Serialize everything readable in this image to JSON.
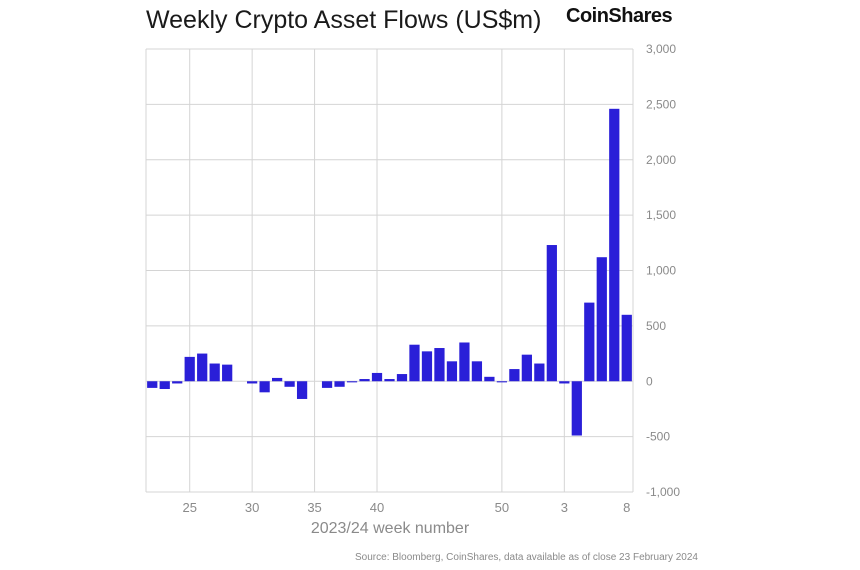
{
  "chart_data": {
    "type": "bar",
    "title": "Weekly Crypto Asset Flows (US$m)",
    "xlabel": "2023/24 week number",
    "ylabel": "",
    "ylim": [
      -1000,
      3000
    ],
    "yticks": [
      -1000,
      -500,
      0,
      500,
      1000,
      1500,
      2000,
      2500,
      3000
    ],
    "ytick_labels": [
      "-1,000",
      "-500",
      "0",
      "500",
      "1,000",
      "1,500",
      "2,000",
      "2,500",
      "3,000"
    ],
    "grid": true,
    "bar_color": "#2a1fd8",
    "categories": [
      22,
      23,
      24,
      25,
      26,
      27,
      28,
      29,
      30,
      31,
      32,
      33,
      34,
      35,
      36,
      37,
      38,
      39,
      40,
      41,
      42,
      43,
      44,
      45,
      46,
      47,
      48,
      49,
      50,
      51,
      52,
      1,
      2,
      3,
      4,
      5,
      6,
      7,
      8
    ],
    "values": [
      -60,
      -70,
      -20,
      220,
      250,
      160,
      150,
      0,
      -20,
      -100,
      30,
      -50,
      -160,
      0,
      -60,
      -50,
      -10,
      20,
      75,
      20,
      65,
      330,
      270,
      300,
      180,
      350,
      180,
      40,
      -10,
      110,
      240,
      160,
      1230,
      -20,
      -490,
      710,
      1120,
      2460,
      600
    ],
    "xtick_labels": [
      {
        "label": "25",
        "index": 3
      },
      {
        "label": "30",
        "index": 8
      },
      {
        "label": "35",
        "index": 13
      },
      {
        "label": "40",
        "index": 18
      },
      {
        "label": "50",
        "index": 28
      },
      {
        "label": "3",
        "index": 33
      },
      {
        "label": "8",
        "index": 38
      }
    ],
    "brand": "CoinShares",
    "source": "Source: Bloomberg, CoinShares, data available as of close 23 February 2024"
  }
}
